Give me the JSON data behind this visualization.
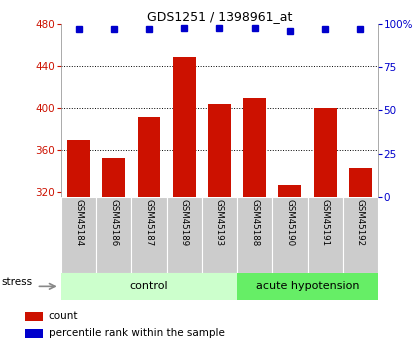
{
  "title": "GDS1251 / 1398961_at",
  "samples": [
    "GSM45184",
    "GSM45186",
    "GSM45187",
    "GSM45189",
    "GSM45193",
    "GSM45188",
    "GSM45190",
    "GSM45191",
    "GSM45192"
  ],
  "counts": [
    370,
    353,
    392,
    449,
    404,
    410,
    327,
    400,
    343
  ],
  "percentiles": [
    97,
    97,
    97,
    98,
    98,
    98,
    96,
    97,
    97
  ],
  "group_labels": [
    "control",
    "acute hypotension"
  ],
  "group_colors": [
    "#ccffcc",
    "#66ee66"
  ],
  "bar_color": "#cc1100",
  "dot_color": "#0000cc",
  "ylim_left": [
    316,
    480
  ],
  "ylim_right": [
    0,
    100
  ],
  "yticks_left": [
    320,
    360,
    400,
    440,
    480
  ],
  "yticks_right": [
    0,
    25,
    50,
    75,
    100
  ],
  "grid_values": [
    360,
    400,
    440
  ],
  "stress_label": "stress",
  "legend_count": "count",
  "legend_percentile": "percentile rank within the sample",
  "tick_bg_color": "#cccccc",
  "plot_bg_color": "#ffffff",
  "n_control": 5,
  "n_acute": 4
}
